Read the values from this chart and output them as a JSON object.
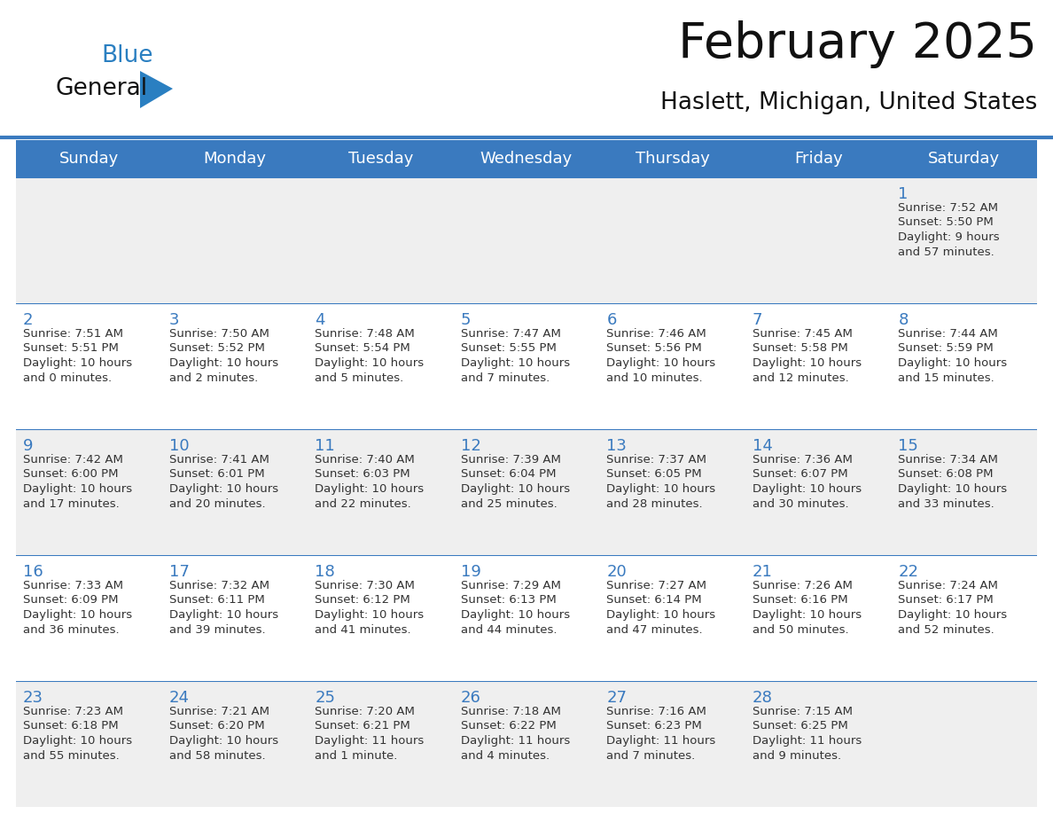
{
  "title": "February 2025",
  "subtitle": "Haslett, Michigan, United States",
  "days_of_week": [
    "Sunday",
    "Monday",
    "Tuesday",
    "Wednesday",
    "Thursday",
    "Friday",
    "Saturday"
  ],
  "header_bg": "#3a7abf",
  "header_text": "#ffffff",
  "cell_bg_odd": "#efefef",
  "cell_bg_even": "#ffffff",
  "cell_border": "#3a7abf",
  "day_number_color": "#3a7abf",
  "info_text_color": "#333333",
  "title_color": "#111111",
  "subtitle_color": "#111111",
  "logo_general_color": "#111111",
  "logo_blue_color": "#2a7fc1",
  "weeks": [
    [
      null,
      null,
      null,
      null,
      null,
      null,
      1
    ],
    [
      2,
      3,
      4,
      5,
      6,
      7,
      8
    ],
    [
      9,
      10,
      11,
      12,
      13,
      14,
      15
    ],
    [
      16,
      17,
      18,
      19,
      20,
      21,
      22
    ],
    [
      23,
      24,
      25,
      26,
      27,
      28,
      null
    ]
  ],
  "day_data": {
    "1": {
      "sunrise": "7:52 AM",
      "sunset": "5:50 PM",
      "daylight": "9 hours",
      "daylight2": "and 57 minutes."
    },
    "2": {
      "sunrise": "7:51 AM",
      "sunset": "5:51 PM",
      "daylight": "10 hours",
      "daylight2": "and 0 minutes."
    },
    "3": {
      "sunrise": "7:50 AM",
      "sunset": "5:52 PM",
      "daylight": "10 hours",
      "daylight2": "and 2 minutes."
    },
    "4": {
      "sunrise": "7:48 AM",
      "sunset": "5:54 PM",
      "daylight": "10 hours",
      "daylight2": "and 5 minutes."
    },
    "5": {
      "sunrise": "7:47 AM",
      "sunset": "5:55 PM",
      "daylight": "10 hours",
      "daylight2": "and 7 minutes."
    },
    "6": {
      "sunrise": "7:46 AM",
      "sunset": "5:56 PM",
      "daylight": "10 hours",
      "daylight2": "and 10 minutes."
    },
    "7": {
      "sunrise": "7:45 AM",
      "sunset": "5:58 PM",
      "daylight": "10 hours",
      "daylight2": "and 12 minutes."
    },
    "8": {
      "sunrise": "7:44 AM",
      "sunset": "5:59 PM",
      "daylight": "10 hours",
      "daylight2": "and 15 minutes."
    },
    "9": {
      "sunrise": "7:42 AM",
      "sunset": "6:00 PM",
      "daylight": "10 hours",
      "daylight2": "and 17 minutes."
    },
    "10": {
      "sunrise": "7:41 AM",
      "sunset": "6:01 PM",
      "daylight": "10 hours",
      "daylight2": "and 20 minutes."
    },
    "11": {
      "sunrise": "7:40 AM",
      "sunset": "6:03 PM",
      "daylight": "10 hours",
      "daylight2": "and 22 minutes."
    },
    "12": {
      "sunrise": "7:39 AM",
      "sunset": "6:04 PM",
      "daylight": "10 hours",
      "daylight2": "and 25 minutes."
    },
    "13": {
      "sunrise": "7:37 AM",
      "sunset": "6:05 PM",
      "daylight": "10 hours",
      "daylight2": "and 28 minutes."
    },
    "14": {
      "sunrise": "7:36 AM",
      "sunset": "6:07 PM",
      "daylight": "10 hours",
      "daylight2": "and 30 minutes."
    },
    "15": {
      "sunrise": "7:34 AM",
      "sunset": "6:08 PM",
      "daylight": "10 hours",
      "daylight2": "and 33 minutes."
    },
    "16": {
      "sunrise": "7:33 AM",
      "sunset": "6:09 PM",
      "daylight": "10 hours",
      "daylight2": "and 36 minutes."
    },
    "17": {
      "sunrise": "7:32 AM",
      "sunset": "6:11 PM",
      "daylight": "10 hours",
      "daylight2": "and 39 minutes."
    },
    "18": {
      "sunrise": "7:30 AM",
      "sunset": "6:12 PM",
      "daylight": "10 hours",
      "daylight2": "and 41 minutes."
    },
    "19": {
      "sunrise": "7:29 AM",
      "sunset": "6:13 PM",
      "daylight": "10 hours",
      "daylight2": "and 44 minutes."
    },
    "20": {
      "sunrise": "7:27 AM",
      "sunset": "6:14 PM",
      "daylight": "10 hours",
      "daylight2": "and 47 minutes."
    },
    "21": {
      "sunrise": "7:26 AM",
      "sunset": "6:16 PM",
      "daylight": "10 hours",
      "daylight2": "and 50 minutes."
    },
    "22": {
      "sunrise": "7:24 AM",
      "sunset": "6:17 PM",
      "daylight": "10 hours",
      "daylight2": "and 52 minutes."
    },
    "23": {
      "sunrise": "7:23 AM",
      "sunset": "6:18 PM",
      "daylight": "10 hours",
      "daylight2": "and 55 minutes."
    },
    "24": {
      "sunrise": "7:21 AM",
      "sunset": "6:20 PM",
      "daylight": "10 hours",
      "daylight2": "and 58 minutes."
    },
    "25": {
      "sunrise": "7:20 AM",
      "sunset": "6:21 PM",
      "daylight": "11 hours",
      "daylight2": "and 1 minute."
    },
    "26": {
      "sunrise": "7:18 AM",
      "sunset": "6:22 PM",
      "daylight": "11 hours",
      "daylight2": "and 4 minutes."
    },
    "27": {
      "sunrise": "7:16 AM",
      "sunset": "6:23 PM",
      "daylight": "11 hours",
      "daylight2": "and 7 minutes."
    },
    "28": {
      "sunrise": "7:15 AM",
      "sunset": "6:25 PM",
      "daylight": "11 hours",
      "daylight2": "and 9 minutes."
    }
  }
}
